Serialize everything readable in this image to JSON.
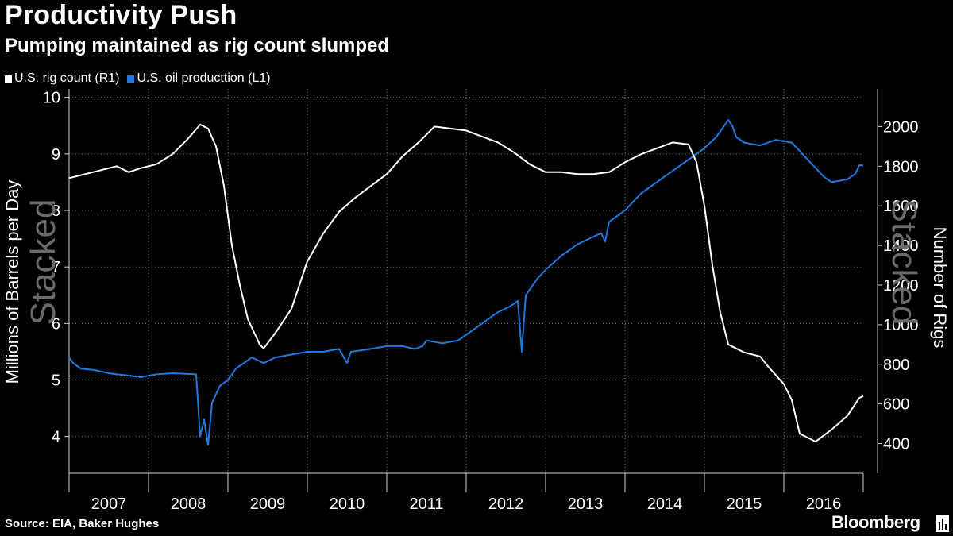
{
  "header": {
    "title": "Productivity Push",
    "subtitle": "Pumping maintained as rig count slumped"
  },
  "legend": [
    {
      "label": "U.S. rig count (R1)",
      "color": "#ffffff"
    },
    {
      "label": "U.S. oil producttion (L1)",
      "color": "#1f7ae0"
    }
  ],
  "footer": {
    "source": "Source: EIA, Baker Hughes",
    "brand": "Bloomberg"
  },
  "watermark": "Stacked",
  "chart_data": {
    "type": "line",
    "title": "Productivity Push",
    "subtitle": "Pumping maintained as rig count slumped",
    "x_categories": [
      "2007",
      "2008",
      "2009",
      "2010",
      "2011",
      "2012",
      "2013",
      "2014",
      "2015",
      "2016"
    ],
    "xlim": [
      2007.0,
      2017.0
    ],
    "y_left": {
      "label": "Millions of Barrels per Day",
      "ylim": [
        3.35,
        10.15
      ],
      "ticks": [
        4,
        5,
        6,
        7,
        8,
        9,
        10
      ]
    },
    "y_right": {
      "label": "Number of Rigs",
      "ylim": [
        250,
        2190
      ],
      "ticks": [
        400,
        600,
        800,
        1000,
        1200,
        1400,
        1600,
        1800,
        2000
      ]
    },
    "grid": true,
    "series": [
      {
        "name": "U.S. oil producttion (L1)",
        "axis": "left",
        "color": "#1f7ae0",
        "points": [
          [
            2007.0,
            5.4
          ],
          [
            2007.05,
            5.3
          ],
          [
            2007.15,
            5.2
          ],
          [
            2007.3,
            5.18
          ],
          [
            2007.5,
            5.12
          ],
          [
            2007.6,
            5.1
          ],
          [
            2007.75,
            5.08
          ],
          [
            2007.9,
            5.05
          ],
          [
            2008.1,
            5.1
          ],
          [
            2008.3,
            5.12
          ],
          [
            2008.6,
            5.1
          ],
          [
            2008.65,
            4.0
          ],
          [
            2008.7,
            4.3
          ],
          [
            2008.75,
            3.85
          ],
          [
            2008.8,
            4.6
          ],
          [
            2008.9,
            4.9
          ],
          [
            2009.0,
            5.0
          ],
          [
            2009.1,
            5.2
          ],
          [
            2009.2,
            5.3
          ],
          [
            2009.3,
            5.4
          ],
          [
            2009.45,
            5.3
          ],
          [
            2009.6,
            5.4
          ],
          [
            2009.8,
            5.45
          ],
          [
            2010.0,
            5.5
          ],
          [
            2010.2,
            5.5
          ],
          [
            2010.4,
            5.55
          ],
          [
            2010.5,
            5.3
          ],
          [
            2010.55,
            5.5
          ],
          [
            2010.8,
            5.55
          ],
          [
            2011.0,
            5.6
          ],
          [
            2011.2,
            5.6
          ],
          [
            2011.35,
            5.55
          ],
          [
            2011.45,
            5.6
          ],
          [
            2011.5,
            5.7
          ],
          [
            2011.7,
            5.65
          ],
          [
            2011.9,
            5.7
          ],
          [
            2012.0,
            5.8
          ],
          [
            2012.2,
            6.0
          ],
          [
            2012.4,
            6.2
          ],
          [
            2012.55,
            6.3
          ],
          [
            2012.65,
            6.4
          ],
          [
            2012.7,
            5.5
          ],
          [
            2012.75,
            6.5
          ],
          [
            2012.9,
            6.8
          ],
          [
            2013.0,
            6.95
          ],
          [
            2013.2,
            7.2
          ],
          [
            2013.4,
            7.4
          ],
          [
            2013.55,
            7.5
          ],
          [
            2013.7,
            7.6
          ],
          [
            2013.75,
            7.45
          ],
          [
            2013.8,
            7.8
          ],
          [
            2014.0,
            8.0
          ],
          [
            2014.2,
            8.3
          ],
          [
            2014.4,
            8.5
          ],
          [
            2014.6,
            8.7
          ],
          [
            2014.8,
            8.9
          ],
          [
            2015.0,
            9.1
          ],
          [
            2015.15,
            9.3
          ],
          [
            2015.3,
            9.6
          ],
          [
            2015.35,
            9.5
          ],
          [
            2015.4,
            9.3
          ],
          [
            2015.5,
            9.2
          ],
          [
            2015.7,
            9.15
          ],
          [
            2015.9,
            9.25
          ],
          [
            2016.1,
            9.2
          ],
          [
            2016.3,
            8.9
          ],
          [
            2016.5,
            8.6
          ],
          [
            2016.6,
            8.5
          ],
          [
            2016.8,
            8.55
          ],
          [
            2016.9,
            8.65
          ],
          [
            2016.95,
            8.8
          ],
          [
            2017.0,
            8.8
          ]
        ]
      },
      {
        "name": "U.S. rig count (R1)",
        "axis": "right",
        "color": "#ffffff",
        "points": [
          [
            2007.0,
            1740
          ],
          [
            2007.2,
            1760
          ],
          [
            2007.4,
            1780
          ],
          [
            2007.6,
            1800
          ],
          [
            2007.75,
            1770
          ],
          [
            2007.9,
            1790
          ],
          [
            2008.1,
            1810
          ],
          [
            2008.3,
            1860
          ],
          [
            2008.5,
            1940
          ],
          [
            2008.65,
            2010
          ],
          [
            2008.75,
            1990
          ],
          [
            2008.85,
            1900
          ],
          [
            2008.95,
            1700
          ],
          [
            2009.05,
            1400
          ],
          [
            2009.15,
            1200
          ],
          [
            2009.25,
            1030
          ],
          [
            2009.4,
            900
          ],
          [
            2009.45,
            880
          ],
          [
            2009.6,
            960
          ],
          [
            2009.8,
            1080
          ],
          [
            2010.0,
            1320
          ],
          [
            2010.2,
            1460
          ],
          [
            2010.4,
            1570
          ],
          [
            2010.6,
            1640
          ],
          [
            2010.8,
            1700
          ],
          [
            2011.0,
            1760
          ],
          [
            2011.2,
            1850
          ],
          [
            2011.4,
            1920
          ],
          [
            2011.6,
            2000
          ],
          [
            2011.8,
            1990
          ],
          [
            2012.0,
            1980
          ],
          [
            2012.2,
            1950
          ],
          [
            2012.4,
            1920
          ],
          [
            2012.6,
            1870
          ],
          [
            2012.8,
            1810
          ],
          [
            2013.0,
            1770
          ],
          [
            2013.2,
            1770
          ],
          [
            2013.4,
            1760
          ],
          [
            2013.6,
            1760
          ],
          [
            2013.8,
            1770
          ],
          [
            2014.0,
            1820
          ],
          [
            2014.2,
            1860
          ],
          [
            2014.4,
            1890
          ],
          [
            2014.6,
            1920
          ],
          [
            2014.8,
            1910
          ],
          [
            2014.9,
            1820
          ],
          [
            2015.0,
            1600
          ],
          [
            2015.1,
            1300
          ],
          [
            2015.2,
            1060
          ],
          [
            2015.3,
            900
          ],
          [
            2015.5,
            860
          ],
          [
            2015.6,
            850
          ],
          [
            2015.7,
            840
          ],
          [
            2015.8,
            790
          ],
          [
            2016.0,
            700
          ],
          [
            2016.1,
            620
          ],
          [
            2016.2,
            450
          ],
          [
            2016.4,
            410
          ],
          [
            2016.6,
            470
          ],
          [
            2016.8,
            540
          ],
          [
            2016.95,
            630
          ],
          [
            2017.0,
            640
          ]
        ]
      }
    ]
  }
}
